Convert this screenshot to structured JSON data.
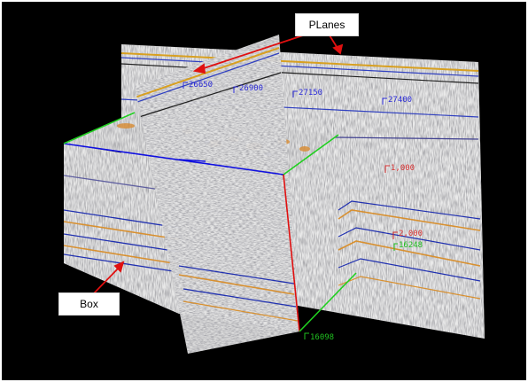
{
  "callouts": {
    "planes": "PLanes",
    "box": "Box"
  },
  "inline_labels": {
    "l26650": "26650",
    "l26900": "26900",
    "l27150": "27150",
    "l27400": "27400",
    "t1000": "1,000",
    "t2000": "2,000",
    "g16248": "16248",
    "g16098": "16098"
  },
  "colors": {
    "background": "#000000",
    "inline_label": "#2a2ad8",
    "time_label": "#d83030",
    "crossline_label": "#20c020",
    "arrow": "#e01010",
    "blue_edge": "#1010e0",
    "green_edge": "#20d020",
    "red_edge": "#e01010"
  }
}
